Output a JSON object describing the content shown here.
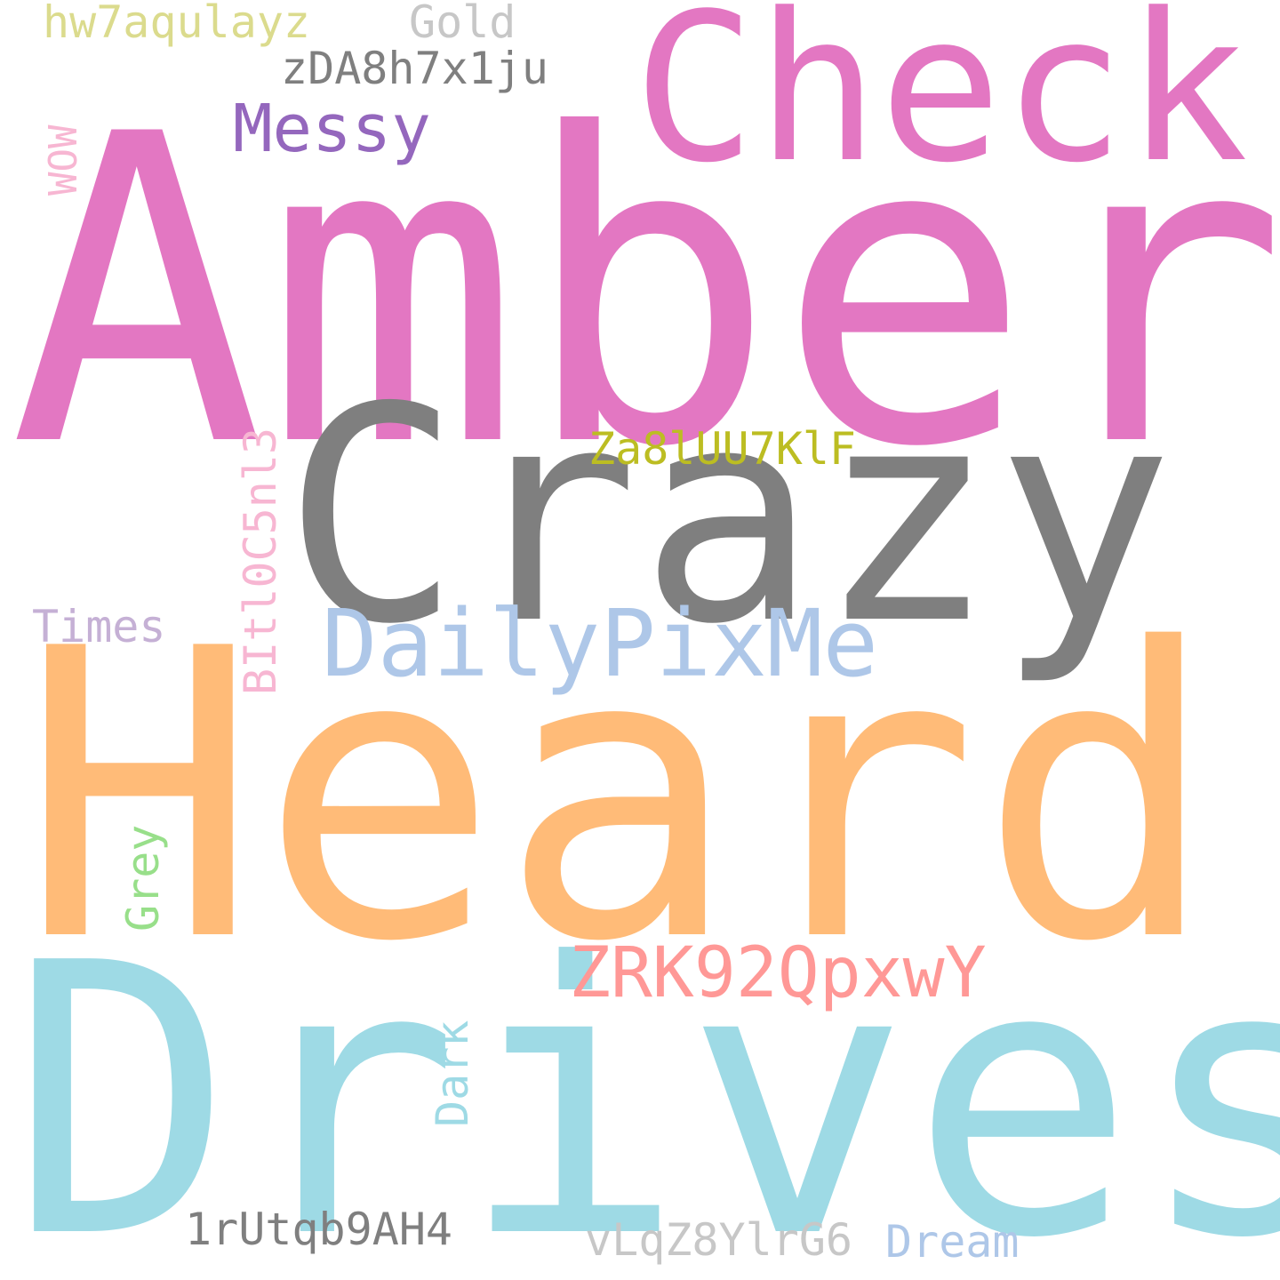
{
  "words": {
    "amber": {
      "text": "Amber",
      "color": "#e377c2"
    },
    "heard": {
      "text": "Heard",
      "color": "#ffbb78"
    },
    "drives": {
      "text": "Drives",
      "color": "#9edae5"
    },
    "crazy": {
      "text": "Crazy",
      "color": "#7f7f7f"
    },
    "check": {
      "text": "Check",
      "color": "#e377c2"
    },
    "dailypixme": {
      "text": "DailyPixMe",
      "color": "#aec7e8"
    },
    "zrk": {
      "text": "ZRK92QpxwY",
      "color": "#ff9896"
    },
    "messy": {
      "text": "Messy",
      "color": "#9467bd"
    },
    "zda": {
      "text": "zDA8h7x1ju",
      "color": "#7f7f7f"
    },
    "za8": {
      "text": "Za8lUU7KlF",
      "color": "#bcbd22"
    },
    "hw7": {
      "text": "hw7aqulayz",
      "color": "#dbdb8d"
    },
    "gold": {
      "text": "Gold",
      "color": "#c7c7c7"
    },
    "wow": {
      "text": "WOW",
      "color": "#f7b6d2"
    },
    "times": {
      "text": "Times",
      "color": "#c5b0d5"
    },
    "bit": {
      "text": "BItl0C5nl3",
      "color": "#f7b6d2"
    },
    "grey": {
      "text": "Grey",
      "color": "#98df8a"
    },
    "dark": {
      "text": "Dark",
      "color": "#9edae5"
    },
    "oneru": {
      "text": "1rUtqb9AH4",
      "color": "#7f7f7f"
    },
    "vlq": {
      "text": "vLqZ8YlrG6",
      "color": "#c7c7c7"
    },
    "dream": {
      "text": "Dream",
      "color": "#aec7e8"
    }
  }
}
